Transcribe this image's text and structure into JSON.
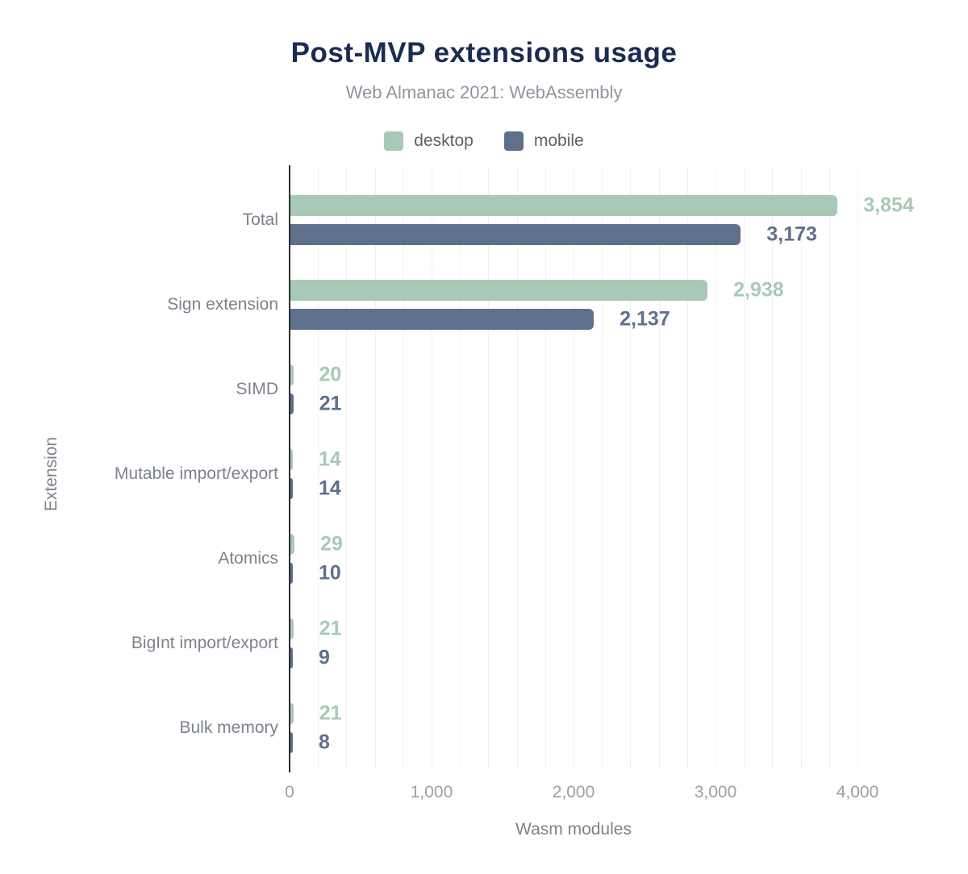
{
  "header": {
    "title": "Post-MVP extensions usage",
    "subtitle": "Web Almanac 2021: WebAssembly"
  },
  "legend": {
    "items": [
      {
        "label": "desktop",
        "color": "#a8c9b7"
      },
      {
        "label": "mobile",
        "color": "#5f708d"
      }
    ]
  },
  "chart_data": {
    "type": "bar",
    "orientation": "horizontal",
    "title": "Post-MVP extensions usage",
    "subtitle": "Web Almanac 2021: WebAssembly",
    "categories": [
      "Total",
      "Sign extension",
      "SIMD",
      "Mutable import/export",
      "Atomics",
      "BigInt import/export",
      "Bulk memory"
    ],
    "series": [
      {
        "name": "desktop",
        "color": "#a8c9b7",
        "values": [
          3854,
          2938,
          20,
          14,
          29,
          21,
          21
        ],
        "labels": [
          "3,854",
          "2,938",
          "20",
          "14",
          "29",
          "21",
          "21"
        ]
      },
      {
        "name": "mobile",
        "color": "#5f708d",
        "values": [
          3173,
          2137,
          21,
          14,
          10,
          9,
          8
        ],
        "labels": [
          "3,173",
          "2,137",
          "21",
          "14",
          "10",
          "9",
          "8"
        ]
      }
    ],
    "xlabel": "Wasm modules",
    "ylabel": "Extension",
    "xlim": [
      0,
      4000
    ],
    "xticks": {
      "values": [
        0,
        1000,
        2000,
        3000,
        4000
      ],
      "labels": [
        "0",
        "1,000",
        "2,000",
        "3,000",
        "4,000"
      ]
    },
    "grid": {
      "on": true,
      "interval": 200
    },
    "legend_position": "top"
  },
  "colors": {
    "background": "#ffffff",
    "title": "#1b2c52",
    "subtitle": "#8f959e",
    "axis_text": "#7c828c",
    "tick_text": "#9aa0a6",
    "axis_line": "#2e2e2e",
    "grid": "#f0f0f2",
    "desktop": "#a8c9b7",
    "mobile": "#5f708d"
  }
}
